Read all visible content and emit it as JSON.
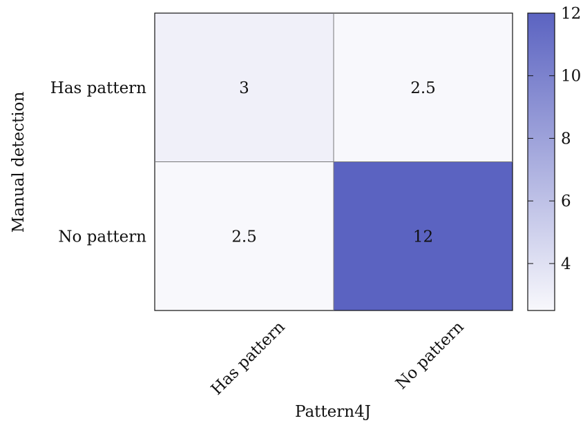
{
  "chart_data": {
    "type": "heatmap",
    "title": "",
    "xlabel": "Pattern4J",
    "ylabel": "Manual detection",
    "x_categories": [
      "Has pattern",
      "No pattern"
    ],
    "y_categories": [
      "Has pattern",
      "No pattern"
    ],
    "values": [
      [
        3,
        2.5
      ],
      [
        2.5,
        12
      ]
    ],
    "cell_labels": [
      [
        "3",
        "2.5"
      ],
      [
        "2.5",
        "12"
      ]
    ],
    "colorbar": {
      "range": [
        2.5,
        12
      ],
      "ticks": [
        "4",
        "6",
        "8",
        "10",
        "12"
      ],
      "low_color": "#f8f8fc",
      "high_color": "#5b63c1"
    },
    "grid": "cell borders"
  }
}
